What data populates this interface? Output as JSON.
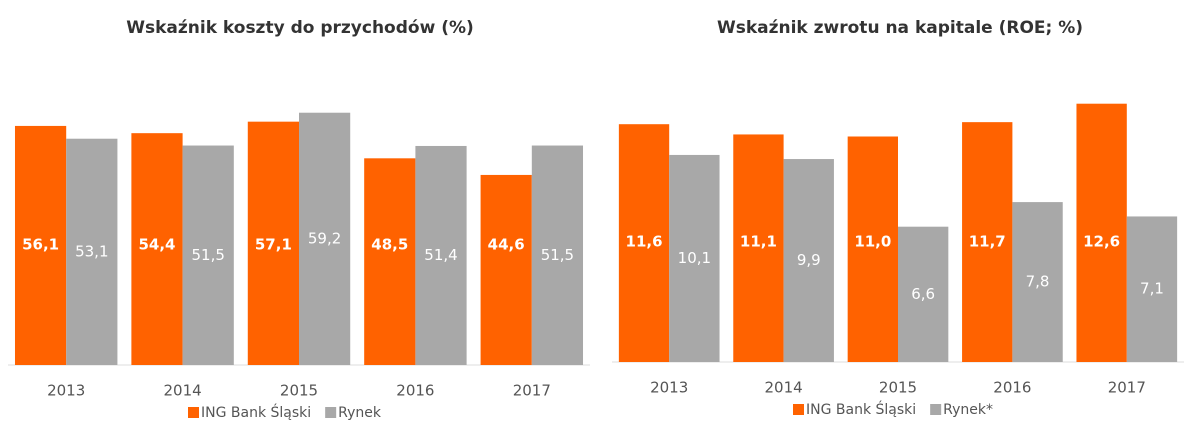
{
  "chart_data": [
    {
      "type": "bar",
      "title": "Wskaźnik koszty do przychodów (%)",
      "categories": [
        "2013",
        "2014",
        "2015",
        "2016",
        "2017"
      ],
      "series": [
        {
          "name": "ING Bank Śląski",
          "color": "#ff6200",
          "values": [
            56.1,
            54.4,
            57.1,
            48.5,
            44.6
          ],
          "value_labels": [
            "56,1",
            "54,4",
            "57,1",
            "48,5",
            "44,6"
          ]
        },
        {
          "name": "Rynek",
          "color": "#a8a8a8",
          "values": [
            53.1,
            51.5,
            59.2,
            51.4,
            51.5
          ],
          "value_labels": [
            "53,1",
            "51,5",
            "59,2",
            "51,4",
            "51,5"
          ]
        }
      ],
      "ylim": [
        0,
        65
      ]
    },
    {
      "type": "bar",
      "title": "Wskaźnik zwrotu na kapitale (ROE; %)",
      "categories": [
        "2013",
        "2014",
        "2015",
        "2016",
        "2017"
      ],
      "series": [
        {
          "name": "ING Bank Śląski",
          "color": "#ff6200",
          "values": [
            11.6,
            11.1,
            11.0,
            11.7,
            12.6
          ],
          "value_labels": [
            "11,6",
            "11,1",
            "11,0",
            "11,7",
            "12,6"
          ]
        },
        {
          "name": "Rynek*",
          "color": "#a8a8a8",
          "values": [
            10.1,
            9.9,
            6.6,
            7.8,
            7.1
          ],
          "value_labels": [
            "10,1",
            "9,9",
            "6,6",
            "7,8",
            "7,1"
          ]
        }
      ],
      "ylim": [
        0,
        14
      ]
    }
  ]
}
